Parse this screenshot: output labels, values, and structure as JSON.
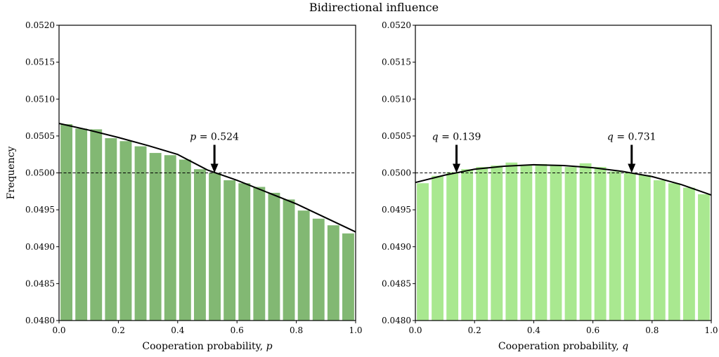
{
  "figure": {
    "title": "Bidirectional influence"
  },
  "chart_data": [
    {
      "type": "bar",
      "title": "",
      "xlabel": "Cooperation probability, p",
      "ylabel": "Frequency",
      "xlim": [
        0.0,
        1.0
      ],
      "ylim": [
        0.048,
        0.052
      ],
      "xticks": [
        "0.0",
        "0.2",
        "0.4",
        "0.6",
        "0.8",
        "1.0"
      ],
      "yticks": [
        "0.0480",
        "0.0485",
        "0.0490",
        "0.0495",
        "0.0500",
        "0.0505",
        "0.0510",
        "0.0515",
        "0.0520"
      ],
      "bar_color": "#82b873",
      "bins": [
        0.025,
        0.075,
        0.125,
        0.175,
        0.225,
        0.275,
        0.325,
        0.375,
        0.425,
        0.475,
        0.525,
        0.575,
        0.625,
        0.675,
        0.725,
        0.775,
        0.825,
        0.875,
        0.925,
        0.975
      ],
      "values": [
        0.05066,
        0.0506,
        0.05059,
        0.05047,
        0.05043,
        0.05036,
        0.05027,
        0.05024,
        0.05018,
        0.05005,
        0.05,
        0.0499,
        0.04986,
        0.04981,
        0.04973,
        0.04964,
        0.04949,
        0.04938,
        0.04929,
        0.04918
      ],
      "curve": {
        "type": "line",
        "color": "#000000",
        "x": [
          0.0,
          0.1,
          0.2,
          0.3,
          0.4,
          0.5,
          0.6,
          0.7,
          0.8,
          0.9,
          1.0
        ],
        "y": [
          0.05067,
          0.05058,
          0.05048,
          0.05037,
          0.05025,
          0.05004,
          0.0499,
          0.04974,
          0.04958,
          0.04939,
          0.0492
        ]
      },
      "reference_line": {
        "y": 0.05,
        "style": "dashed"
      },
      "annotations": [
        {
          "var": "p",
          "text": "= 0.524",
          "x": 0.524,
          "y": 0.05
        }
      ],
      "grid": false
    },
    {
      "type": "bar",
      "title": "",
      "xlabel": "Cooperation probability, q",
      "ylabel": "",
      "xlim": [
        0.0,
        1.0
      ],
      "ylim": [
        0.048,
        0.052
      ],
      "xticks": [
        "0.0",
        "0.2",
        "0.4",
        "0.6",
        "0.8",
        "1.0"
      ],
      "yticks": [
        "0.0480",
        "0.0485",
        "0.0490",
        "0.0495",
        "0.0500",
        "0.0505",
        "0.0510",
        "0.0515",
        "0.0520"
      ],
      "bar_color": "#a9e890",
      "bins": [
        0.025,
        0.075,
        0.125,
        0.175,
        0.225,
        0.275,
        0.325,
        0.375,
        0.425,
        0.475,
        0.525,
        0.575,
        0.625,
        0.675,
        0.725,
        0.775,
        0.825,
        0.875,
        0.925,
        0.975
      ],
      "values": [
        0.04986,
        0.04996,
        0.05001,
        0.05005,
        0.05008,
        0.0501,
        0.05014,
        0.05011,
        0.05012,
        0.05011,
        0.05008,
        0.05013,
        0.05008,
        0.05002,
        0.05,
        0.04997,
        0.0499,
        0.04986,
        0.0498,
        0.04971
      ],
      "curve": {
        "type": "line",
        "color": "#000000",
        "x": [
          0.0,
          0.1,
          0.2,
          0.3,
          0.4,
          0.5,
          0.6,
          0.7,
          0.8,
          0.9,
          1.0
        ],
        "y": [
          0.04987,
          0.04997,
          0.05005,
          0.05009,
          0.05011,
          0.0501,
          0.05007,
          0.05002,
          0.04995,
          0.04984,
          0.0497
        ]
      },
      "reference_line": {
        "y": 0.05,
        "style": "dashed"
      },
      "annotations": [
        {
          "var": "q",
          "text": "= 0.139",
          "x": 0.139,
          "y": 0.05
        },
        {
          "var": "q",
          "text": "= 0.731",
          "x": 0.731,
          "y": 0.05
        }
      ],
      "grid": false
    }
  ]
}
